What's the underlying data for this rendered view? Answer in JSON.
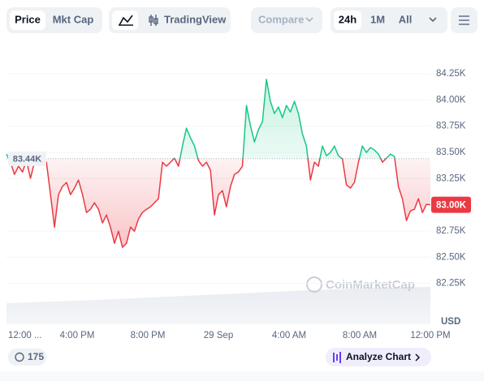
{
  "toolbar": {
    "tabs": [
      "Price",
      "Mkt Cap"
    ],
    "trading_view": "TradingView",
    "compare": "Compare",
    "ranges": [
      "24h",
      "1M",
      "All"
    ]
  },
  "chart_data": {
    "type": "line",
    "values": [
      83484,
      83406,
      83290,
      83368,
      83313,
      83422,
      83252,
      83406,
      83430,
      83437,
      83406,
      83097,
      82787,
      83097,
      83174,
      83213,
      83097,
      83159,
      83236,
      83097,
      82926,
      82957,
      83019,
      82957,
      82826,
      82903,
      82787,
      82632,
      82748,
      82594,
      82632,
      82787,
      82748,
      82865,
      82926,
      82957,
      82981,
      83019,
      83058,
      83406,
      83368,
      83406,
      83445,
      83368,
      83561,
      83731,
      83639,
      83561,
      83422,
      83368,
      83406,
      83329,
      82903,
      83097,
      83135,
      82981,
      83174,
      83290,
      83313,
      83368,
      83948,
      83755,
      83600,
      83716,
      83793,
      84196,
      83987,
      83871,
      83933,
      83832,
      83948,
      83886,
      83987,
      83871,
      83677,
      83561,
      83236,
      83406,
      83368,
      83561,
      83468,
      83499,
      83561,
      83468,
      83437,
      83190,
      83159,
      83213,
      83406,
      83561,
      83499,
      83546,
      83522,
      83484,
      83406,
      83445,
      83484,
      83461,
      83174,
      83058,
      82849,
      82942,
      82957,
      83058,
      82926,
      83004,
      83000
    ],
    "up_color": "#16c784",
    "down_color": "#ea3943",
    "baseline": {
      "value": 83440,
      "label": "83.44K"
    },
    "current_price": {
      "value": 83000,
      "label": "83.00K"
    },
    "ylim": [
      81860,
      84490
    ],
    "yticks": [
      {
        "value": 82250,
        "label": "82.25K"
      },
      {
        "value": 82500,
        "label": "82.50K"
      },
      {
        "value": 82750,
        "label": "82.75K"
      },
      {
        "value": 83250,
        "label": "83.25K"
      },
      {
        "value": 83500,
        "label": "83.50K"
      },
      {
        "value": 83750,
        "label": "83.75K"
      },
      {
        "value": 84000,
        "label": "84.00K"
      },
      {
        "value": 84250,
        "label": "84.25K"
      }
    ],
    "y_unit": "USD",
    "x_labels": [
      "12:00 ...",
      "4:00 PM",
      "8:00 PM",
      "29 Sep",
      "4:00 AM",
      "8:00 AM",
      "12:00 PM"
    ],
    "watermark": "CoinMarketCap"
  },
  "footer": {
    "count": "175",
    "analyze": "Analyze Chart"
  }
}
